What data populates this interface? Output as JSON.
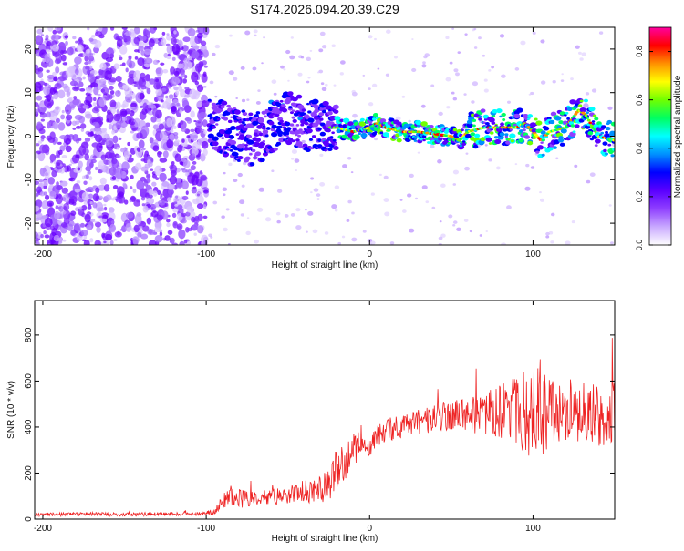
{
  "title": "S174.2026.094.20.39.C29",
  "chart_data": [
    {
      "type": "heatmap",
      "title": "S174.2026.094.20.39.C29",
      "xlabel": "Height of straight line (km)",
      "ylabel": "Frequency (Hz)",
      "xlim": [
        -205,
        150
      ],
      "ylim": [
        -25,
        25
      ],
      "x_ticks": [
        -200,
        -100,
        0,
        100
      ],
      "y_ticks": [
        -20,
        -10,
        0,
        10,
        20
      ],
      "colorbar": {
        "label": "Normalized spectral amplitude",
        "range": [
          0,
          0.9
        ],
        "ticks": [
          0.0,
          0.2,
          0.4,
          0.6,
          0.8
        ],
        "colors": [
          "#ffffff",
          "#c9a9ff",
          "#8f3fff",
          "#5a00ff",
          "#0000ff",
          "#0090ff",
          "#00ffff",
          "#00ff60",
          "#70ff00",
          "#ffff00",
          "#ff9000",
          "#ff0000",
          "#ff00a0"
        ]
      },
      "signal_track": {
        "x": [
          -95,
          -90,
          -80,
          -70,
          -60,
          -50,
          -40,
          -30,
          -20,
          -10,
          0,
          5,
          10,
          20,
          30,
          40,
          50,
          55,
          60,
          70,
          80,
          90,
          95,
          100,
          105,
          110,
          120,
          128,
          132,
          140,
          150
        ],
        "freq": [
          3,
          2,
          0,
          -1,
          2,
          4,
          3,
          2,
          2,
          1,
          2,
          3,
          2,
          1,
          1,
          0.5,
          0,
          -1,
          1,
          2,
          2,
          2,
          3,
          1,
          -1,
          1,
          2,
          6,
          5,
          0,
          -1
        ]
      },
      "noise_region_x": [
        -205,
        -100
      ],
      "noise_level": "strong"
    },
    {
      "type": "line",
      "xlabel": "Height of straight line (km)",
      "ylabel": "SNR (10 * v/v)",
      "xlim": [
        -205,
        150
      ],
      "ylim": [
        0,
        950
      ],
      "x_ticks": [
        -200,
        -100,
        0,
        100
      ],
      "y_ticks": [
        0,
        200,
        400,
        600,
        800
      ],
      "color": "#ee2222",
      "series": [
        {
          "name": "SNR",
          "x": [
            -205,
            -190,
            -170,
            -150,
            -130,
            -110,
            -100,
            -95,
            -90,
            -85,
            -80,
            -70,
            -60,
            -50,
            -40,
            -30,
            -25,
            -20,
            -15,
            -10,
            -5,
            0,
            5,
            10,
            20,
            30,
            40,
            50,
            60,
            70,
            80,
            90,
            100,
            110,
            120,
            130,
            140,
            150
          ],
          "y": [
            20,
            20,
            22,
            20,
            22,
            22,
            25,
            35,
            70,
            110,
            90,
            85,
            95,
            100,
            120,
            130,
            150,
            240,
            200,
            300,
            330,
            310,
            360,
            390,
            400,
            420,
            440,
            450,
            460,
            455,
            470,
            460,
            450,
            470,
            450,
            460,
            455,
            450
          ]
        }
      ],
      "noise_amplitude": [
        8,
        8,
        8,
        8,
        8,
        8,
        8,
        15,
        35,
        45,
        40,
        35,
        35,
        40,
        50,
        60,
        70,
        110,
        90,
        100,
        60,
        45,
        50,
        55,
        50,
        55,
        60,
        70,
        80,
        90,
        120,
        180,
        220,
        160,
        140,
        140,
        140,
        150
      ]
    }
  ]
}
